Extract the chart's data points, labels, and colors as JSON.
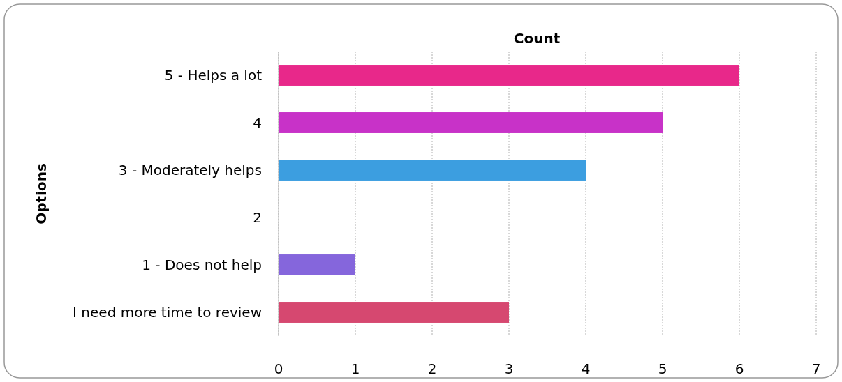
{
  "chart_data": {
    "type": "bar",
    "orientation": "horizontal",
    "xlabel": "Count",
    "ylabel": "Options",
    "categories": [
      "5 - Helps a lot",
      "4",
      "3 - Moderately helps",
      "2",
      "1 - Does not help",
      "I need more time to review"
    ],
    "values": [
      6,
      5,
      4,
      0,
      1,
      3
    ],
    "colors": [
      "#e8288a",
      "#c832c8",
      "#3c9ee0",
      "#888888",
      "#8566dc",
      "#d64870"
    ],
    "xlim": [
      0,
      7
    ],
    "xticks": [
      0,
      1,
      2,
      3,
      4,
      5,
      6,
      7
    ],
    "grid": "x"
  }
}
